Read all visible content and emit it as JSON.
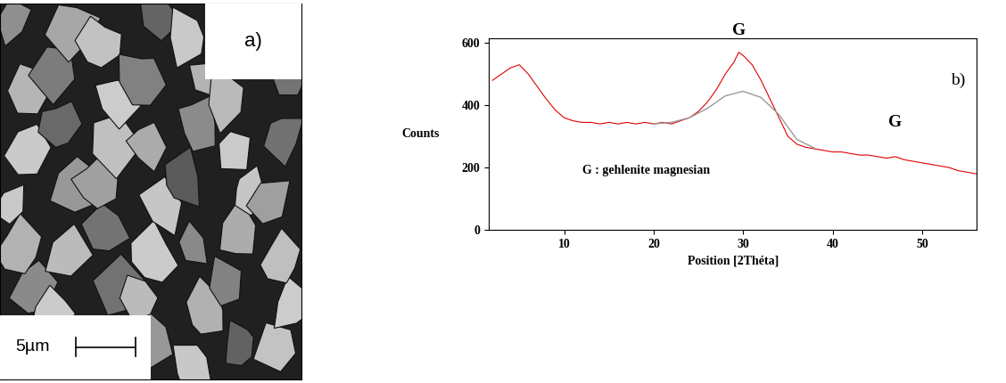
{
  "image_panel": {
    "label": "a)",
    "scale_bar": "5µm"
  },
  "chart_data": {
    "type": "line",
    "label": "b)",
    "x_label": "Position [2Théta]",
    "y_label": "Counts",
    "series": [
      {
        "color": "#e00000",
        "x": [
          2,
          3,
          4,
          5,
          6,
          7,
          8,
          9,
          10,
          11,
          12,
          13,
          14,
          15,
          16,
          17,
          18,
          19,
          20,
          21,
          22,
          23,
          24,
          25,
          26,
          27,
          28,
          29,
          29.5,
          30,
          31,
          32,
          33,
          34,
          35,
          36,
          37,
          38,
          39,
          40,
          41,
          42,
          43,
          44,
          45,
          46,
          47,
          48,
          49,
          50,
          51,
          52,
          53,
          54,
          55,
          56
        ],
        "values": [
          480,
          500,
          520,
          530,
          500,
          460,
          420,
          385,
          360,
          350,
          345,
          345,
          340,
          345,
          340,
          345,
          340,
          345,
          340,
          345,
          340,
          350,
          360,
          380,
          410,
          450,
          500,
          540,
          570,
          560,
          530,
          480,
          420,
          360,
          300,
          275,
          265,
          260,
          255,
          250,
          250,
          245,
          240,
          240,
          235,
          230,
          235,
          225,
          220,
          215,
          210,
          205,
          200,
          190,
          185,
          180
        ]
      },
      {
        "color": "#9a9a9a",
        "x": [
          20,
          22,
          24,
          26,
          28,
          30,
          32,
          34,
          36,
          38
        ],
        "values": [
          340,
          345,
          360,
          390,
          430,
          445,
          425,
          370,
          290,
          262
        ]
      }
    ],
    "annotations": [
      {
        "text": "G",
        "x": 29.5,
        "y": 640
      },
      {
        "text": "G",
        "x": 47,
        "y": 345
      },
      {
        "text": "G : gehlenite magnesian",
        "x": 12,
        "y": 190
      },
      {
        "text": "b)",
        "x": 54,
        "y": 480
      }
    ],
    "xlim": [
      1.6,
      56.1
    ],
    "ylim": [
      0,
      615
    ],
    "xticks": [
      10,
      20,
      30,
      40,
      50
    ],
    "yticks": [
      0,
      200,
      400,
      600
    ],
    "grid": false
  }
}
